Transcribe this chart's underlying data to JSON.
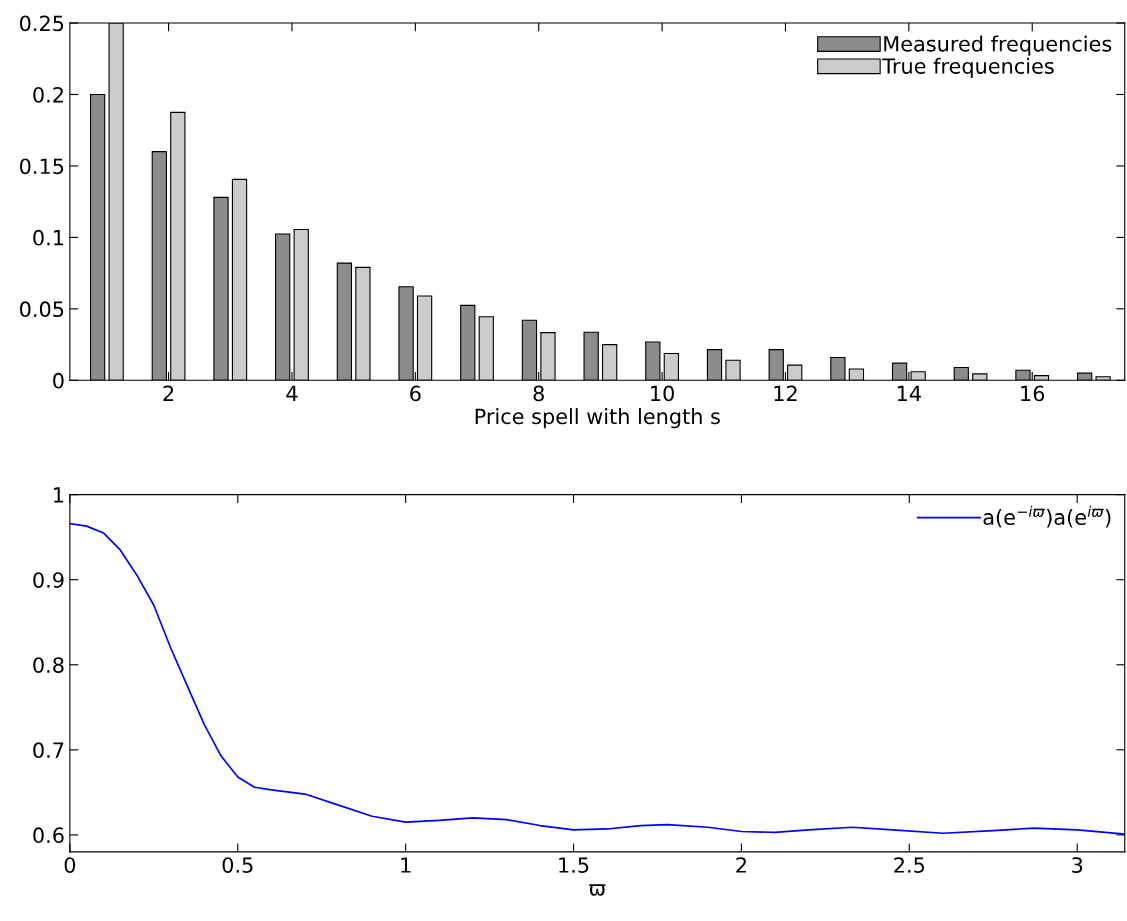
{
  "chart_data": [
    {
      "type": "bar",
      "xlabel": "Price spell with length s",
      "x": [
        1,
        2,
        3,
        4,
        5,
        6,
        7,
        8,
        9,
        10,
        11,
        12,
        13,
        14,
        15,
        16,
        17
      ],
      "series": [
        {
          "name": "Measured frequencies",
          "color": "#8c8c8c",
          "values": [
            0.2,
            0.16,
            0.128,
            0.1024,
            0.082,
            0.0655,
            0.0524,
            0.042,
            0.0336,
            0.0268,
            0.0215,
            0.0215,
            0.016,
            0.012,
            0.009,
            0.007,
            0.005
          ]
        },
        {
          "name": "True frequencies",
          "color": "#cccccc",
          "values": [
            0.25,
            0.1875,
            0.1406,
            0.1055,
            0.079,
            0.059,
            0.0445,
            0.0334,
            0.025,
            0.0188,
            0.014,
            0.0106,
            0.0079,
            0.006,
            0.0045,
            0.0033,
            0.0025
          ]
        }
      ],
      "xlim": [
        0.4,
        17.5
      ],
      "xticks": [
        2,
        4,
        6,
        8,
        10,
        12,
        14,
        16
      ],
      "ylim": [
        0,
        0.25
      ],
      "yticks": [
        0,
        0.05,
        0.1,
        0.15,
        0.2,
        0.25
      ],
      "legend": "top right",
      "grid": false
    },
    {
      "type": "line",
      "xlabel": "ϖ",
      "series": [
        {
          "name": "a(e$^{−iϖ}$)a(e$^{iϖ}$)",
          "color": "#0000ff",
          "x": [
            0,
            0.05,
            0.1,
            0.15,
            0.2,
            0.25,
            0.3,
            0.35,
            0.4,
            0.45,
            0.5,
            0.55,
            0.6,
            0.7,
            0.8,
            0.9,
            1.0,
            1.1,
            1.2,
            1.3,
            1.4,
            1.5,
            1.6,
            1.7,
            1.78,
            1.9,
            2.0,
            2.1,
            2.2,
            2.33,
            2.45,
            2.6,
            2.75,
            2.87,
            3.0,
            3.14
          ],
          "values": [
            0.966,
            0.963,
            0.955,
            0.935,
            0.905,
            0.87,
            0.82,
            0.775,
            0.73,
            0.693,
            0.668,
            0.656,
            0.653,
            0.648,
            0.635,
            0.622,
            0.615,
            0.617,
            0.62,
            0.618,
            0.611,
            0.606,
            0.607,
            0.611,
            0.612,
            0.609,
            0.604,
            0.603,
            0.606,
            0.609,
            0.606,
            0.602,
            0.605,
            0.608,
            0.606,
            0.601
          ]
        }
      ],
      "xlim": [
        0,
        3.1416
      ],
      "xticks": [
        0,
        0.5,
        1,
        1.5,
        2,
        2.5,
        3
      ],
      "ylim": [
        0.58,
        1
      ],
      "yticks": [
        0.6,
        0.7,
        0.8,
        0.9,
        1
      ],
      "legend": "top right",
      "grid": false
    }
  ]
}
